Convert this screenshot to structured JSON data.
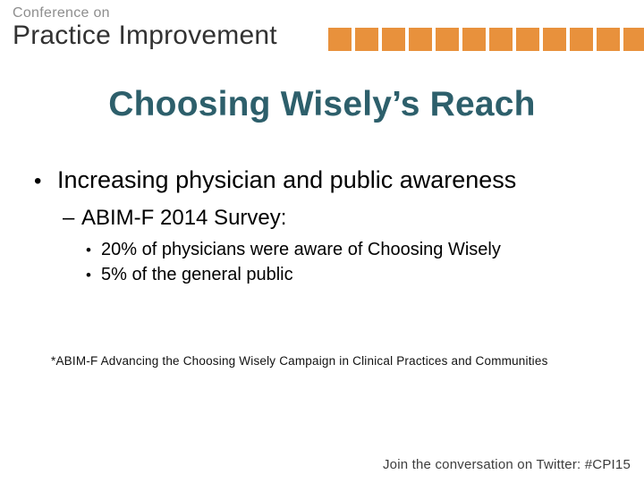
{
  "logo": {
    "line1": "Conference on",
    "line2": "Practice Improvement",
    "line1_color": "#8E8E8E",
    "line2_color": "#323232",
    "squares_count": 12,
    "square_color": "#E8913C"
  },
  "title": {
    "text": "Choosing Wisely’s Reach",
    "color": "#2D5F6B"
  },
  "content": {
    "bullet1": {
      "marker": "•",
      "text": "Increasing physician and public awareness"
    },
    "sub1": {
      "marker": "–",
      "text": "ABIM-F 2014 Survey:"
    },
    "detail_bullets": [
      {
        "marker": "•",
        "text": "20% of physicians were aware of Choosing Wisely"
      },
      {
        "marker": "•",
        "text": "5% of the general public"
      }
    ]
  },
  "footnote": "*ABIM-F Advancing the Choosing Wisely Campaign in Clinical Practices and Communities",
  "footer": {
    "text": "Join the conversation on Twitter: #CPI15"
  }
}
